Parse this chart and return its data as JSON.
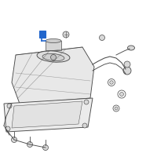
{
  "background_color": "#ffffff",
  "line_color": "#4a4a4a",
  "highlight_color": "#2266cc",
  "figure_size": [
    2.0,
    2.0
  ],
  "dpi": 100,
  "tank_face": "#e8e8e8",
  "shield_face": "#ebebeb",
  "part_face": "#d8d8d8"
}
